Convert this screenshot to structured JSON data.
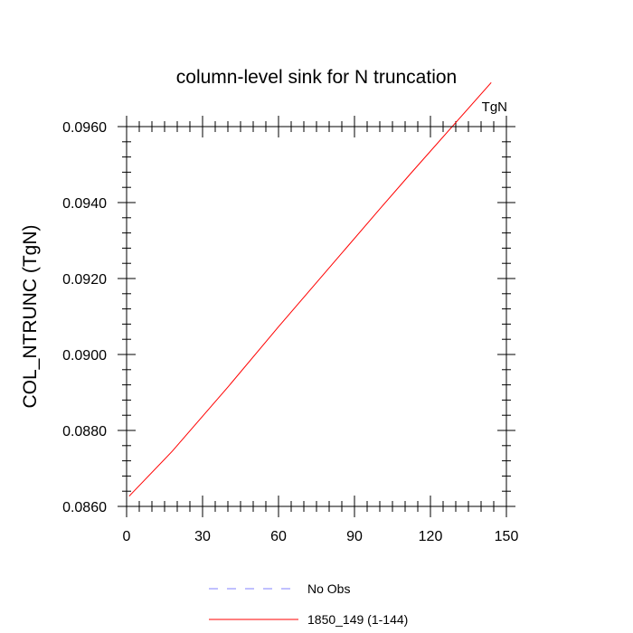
{
  "chart_data": {
    "type": "line",
    "title": "column-level sink for N truncation",
    "units": "TgN",
    "ylabel": "COL_NTRUNC  (TgN)",
    "xlabel": "",
    "xlim": [
      0,
      150
    ],
    "ylim": [
      0.086,
      0.096
    ],
    "xticks": [
      0,
      30,
      60,
      90,
      120,
      150
    ],
    "xtick_labels": [
      "0",
      "30",
      "60",
      "90",
      "120",
      "150"
    ],
    "yticks": [
      0.086,
      0.088,
      0.09,
      0.092,
      0.094,
      0.096
    ],
    "ytick_labels": [
      "0.0860",
      "0.0880",
      "0.0900",
      "0.0920",
      "0.0940",
      "0.0960"
    ],
    "grid": false,
    "legend_position": "bottom",
    "series": [
      {
        "name": "No Obs",
        "color": "#8080ff",
        "dashed": true,
        "x": [],
        "y": []
      },
      {
        "name": "1850_149 (1-144)",
        "color": "#ff0000",
        "dashed": false,
        "x": [
          1,
          18,
          40,
          60,
          80,
          100,
          112,
          144
        ],
        "y": [
          0.08627,
          0.08745,
          0.08914,
          0.09073,
          0.09228,
          0.09383,
          0.09475,
          0.09716
        ]
      }
    ]
  }
}
